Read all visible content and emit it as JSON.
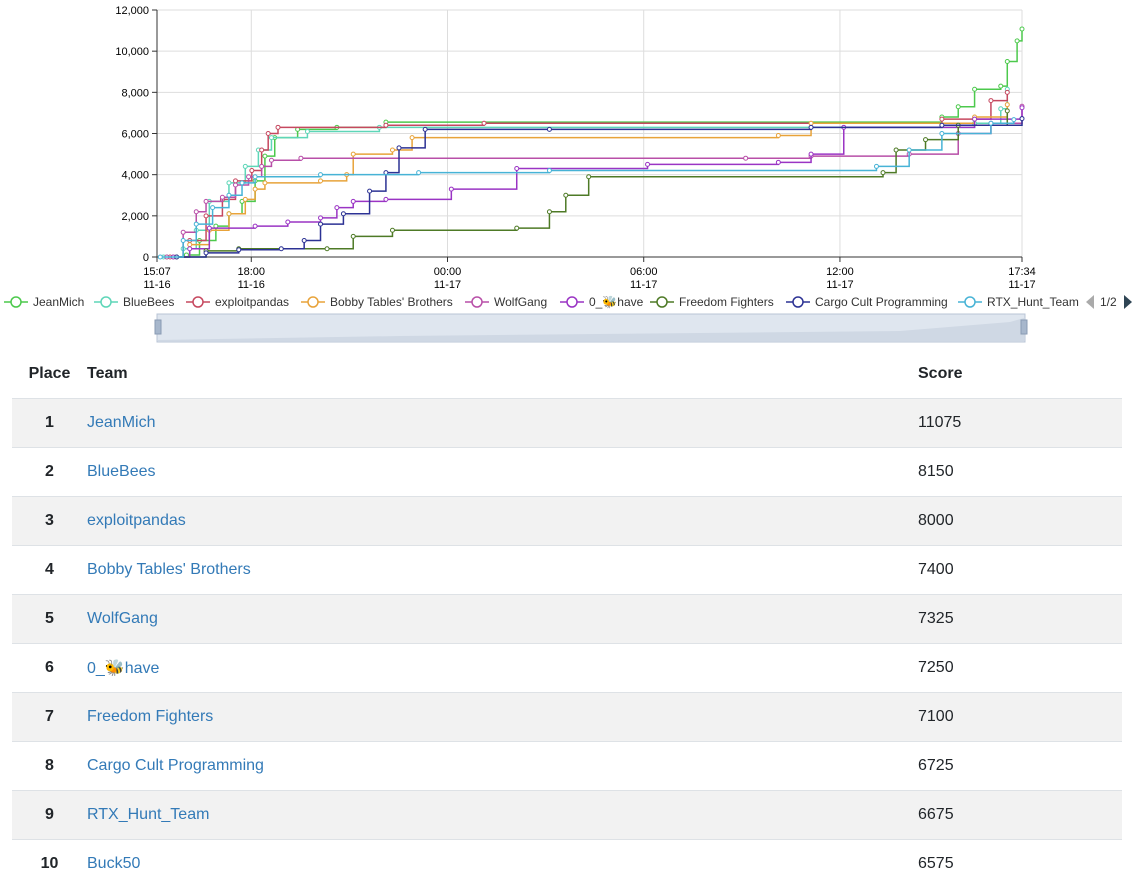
{
  "chart_data": {
    "type": "line",
    "title": "",
    "xlabel": "",
    "ylabel": "",
    "ylim": [
      0,
      12000
    ],
    "yticks": [
      "0",
      "2,000",
      "4,000",
      "6,000",
      "8,000",
      "10,000",
      "12,000"
    ],
    "xticks": [
      {
        "time": "15:07",
        "date": "11-16",
        "h": 0.0
      },
      {
        "time": "18:00",
        "date": "11-16",
        "h": 2.883
      },
      {
        "time": "00:00",
        "date": "11-17",
        "h": 8.883
      },
      {
        "time": "06:00",
        "date": "11-17",
        "h": 14.883
      },
      {
        "time": "12:00",
        "date": "11-17",
        "h": 20.883
      },
      {
        "time": "17:34",
        "date": "11-17",
        "h": 26.45
      }
    ],
    "grid": true,
    "legend_position": "top",
    "legend_page": "1/2",
    "series": [
      {
        "name": "JeanMich",
        "color": "#4cc94c",
        "points": [
          [
            0.3,
            0
          ],
          [
            0.9,
            100
          ],
          [
            1.3,
            800
          ],
          [
            1.8,
            1500
          ],
          [
            2.2,
            2100
          ],
          [
            2.6,
            2700
          ],
          [
            3.0,
            3700
          ],
          [
            3.3,
            4900
          ],
          [
            3.6,
            5800
          ],
          [
            4.3,
            6200
          ],
          [
            5.5,
            6300
          ],
          [
            7.0,
            6550
          ],
          [
            24.0,
            6800
          ],
          [
            24.5,
            7300
          ],
          [
            25.0,
            8150
          ],
          [
            25.8,
            8300
          ],
          [
            26.0,
            9500
          ],
          [
            26.3,
            10500
          ],
          [
            26.45,
            11075
          ]
        ]
      },
      {
        "name": "BlueBees",
        "color": "#5ed6b8",
        "points": [
          [
            0.2,
            0
          ],
          [
            0.8,
            400
          ],
          [
            1.2,
            1300
          ],
          [
            1.6,
            2700
          ],
          [
            2.2,
            3600
          ],
          [
            2.7,
            4400
          ],
          [
            3.1,
            5200
          ],
          [
            3.5,
            5800
          ],
          [
            4.6,
            6100
          ],
          [
            6.8,
            6300
          ],
          [
            25.0,
            6500
          ],
          [
            25.8,
            7200
          ],
          [
            26.0,
            8150
          ]
        ]
      },
      {
        "name": "exploitpandas",
        "color": "#c6485f",
        "points": [
          [
            0.4,
            0
          ],
          [
            1.0,
            800
          ],
          [
            1.5,
            2000
          ],
          [
            2.0,
            2800
          ],
          [
            2.4,
            3700
          ],
          [
            2.9,
            4200
          ],
          [
            3.2,
            5200
          ],
          [
            3.4,
            6000
          ],
          [
            3.7,
            6300
          ],
          [
            7.0,
            6400
          ],
          [
            10.0,
            6500
          ],
          [
            24.0,
            6700
          ],
          [
            25.5,
            7600
          ],
          [
            26.0,
            8000
          ]
        ]
      },
      {
        "name": "Bobby Tables' Brothers",
        "color": "#e8a33a",
        "points": [
          [
            0.5,
            0
          ],
          [
            1.0,
            600
          ],
          [
            1.6,
            1300
          ],
          [
            2.2,
            2100
          ],
          [
            2.7,
            2800
          ],
          [
            3.0,
            3300
          ],
          [
            3.3,
            3600
          ],
          [
            5.0,
            3700
          ],
          [
            5.8,
            4000
          ],
          [
            6.0,
            5000
          ],
          [
            7.2,
            5200
          ],
          [
            7.8,
            5800
          ],
          [
            19.0,
            5900
          ],
          [
            20.0,
            6500
          ],
          [
            25.0,
            6800
          ],
          [
            26.0,
            7400
          ]
        ]
      },
      {
        "name": "WolfGang",
        "color": "#b84fa8",
        "points": [
          [
            0.3,
            0
          ],
          [
            0.8,
            1200
          ],
          [
            1.2,
            2200
          ],
          [
            1.5,
            2700
          ],
          [
            2.0,
            2900
          ],
          [
            2.4,
            3500
          ],
          [
            2.8,
            3900
          ],
          [
            3.2,
            4400
          ],
          [
            3.5,
            4700
          ],
          [
            4.4,
            4800
          ],
          [
            18.0,
            4800
          ],
          [
            20.0,
            4900
          ],
          [
            23.0,
            5000
          ],
          [
            24.5,
            6000
          ],
          [
            25.5,
            6500
          ],
          [
            26.45,
            7325
          ]
        ]
      },
      {
        "name": "0_🐝have",
        "color": "#9a34c4",
        "points": [
          [
            0.5,
            0
          ],
          [
            1.0,
            400
          ],
          [
            1.6,
            1400
          ],
          [
            3.0,
            1500
          ],
          [
            4.0,
            1700
          ],
          [
            5.0,
            1900
          ],
          [
            5.5,
            2400
          ],
          [
            6.0,
            2700
          ],
          [
            7.0,
            2800
          ],
          [
            9.0,
            3300
          ],
          [
            11.0,
            4300
          ],
          [
            15.0,
            4500
          ],
          [
            19.0,
            4600
          ],
          [
            20.0,
            5000
          ],
          [
            21.0,
            6300
          ],
          [
            25.0,
            6700
          ],
          [
            26.45,
            7250
          ]
        ]
      },
      {
        "name": "Freedom Fighters",
        "color": "#4e7a26",
        "points": [
          [
            0.6,
            0
          ],
          [
            1.5,
            300
          ],
          [
            2.5,
            400
          ],
          [
            5.2,
            400
          ],
          [
            6.0,
            1000
          ],
          [
            7.2,
            1300
          ],
          [
            11.0,
            1400
          ],
          [
            12.0,
            2200
          ],
          [
            12.5,
            3000
          ],
          [
            13.2,
            3900
          ],
          [
            22.2,
            4100
          ],
          [
            22.6,
            5200
          ],
          [
            23.5,
            5700
          ],
          [
            24.5,
            6400
          ],
          [
            26.0,
            7100
          ]
        ]
      },
      {
        "name": "Cargo Cult Programming",
        "color": "#2c3294",
        "points": [
          [
            0.6,
            0
          ],
          [
            1.5,
            200
          ],
          [
            2.5,
            350
          ],
          [
            3.8,
            400
          ],
          [
            4.5,
            800
          ],
          [
            5.0,
            1600
          ],
          [
            5.7,
            2100
          ],
          [
            6.5,
            3200
          ],
          [
            7.0,
            4100
          ],
          [
            7.4,
            5300
          ],
          [
            8.2,
            6200
          ],
          [
            12.0,
            6200
          ],
          [
            20.0,
            6300
          ],
          [
            24.0,
            6400
          ],
          [
            26.45,
            6725
          ]
        ]
      },
      {
        "name": "RTX_Hunt_Team",
        "color": "#47b3d6",
        "points": [
          [
            0.1,
            0
          ],
          [
            0.8,
            800
          ],
          [
            1.2,
            1600
          ],
          [
            1.7,
            2400
          ],
          [
            2.2,
            3000
          ],
          [
            2.6,
            3600
          ],
          [
            3.0,
            3900
          ],
          [
            5.0,
            4000
          ],
          [
            8.0,
            4100
          ],
          [
            12.0,
            4200
          ],
          [
            22.0,
            4400
          ],
          [
            23.0,
            5200
          ],
          [
            24.0,
            6000
          ],
          [
            25.5,
            6500
          ],
          [
            26.2,
            6675
          ]
        ]
      }
    ]
  },
  "table": {
    "headers": {
      "place": "Place",
      "team": "Team",
      "score": "Score"
    },
    "rows": [
      {
        "place": "1",
        "team": "JeanMich",
        "score": "11075"
      },
      {
        "place": "2",
        "team": "BlueBees",
        "score": "8150"
      },
      {
        "place": "3",
        "team": "exploitpandas",
        "score": "8000"
      },
      {
        "place": "4",
        "team": "Bobby Tables' Brothers",
        "score": "7400"
      },
      {
        "place": "5",
        "team": "WolfGang",
        "score": "7325"
      },
      {
        "place": "6",
        "team": "0_🐝have",
        "score": "7250"
      },
      {
        "place": "7",
        "team": "Freedom Fighters",
        "score": "7100"
      },
      {
        "place": "8",
        "team": "Cargo Cult Programming",
        "score": "6725"
      },
      {
        "place": "9",
        "team": "RTX_Hunt_Team",
        "score": "6675"
      },
      {
        "place": "10",
        "team": "Buck50",
        "score": "6575"
      }
    ]
  }
}
